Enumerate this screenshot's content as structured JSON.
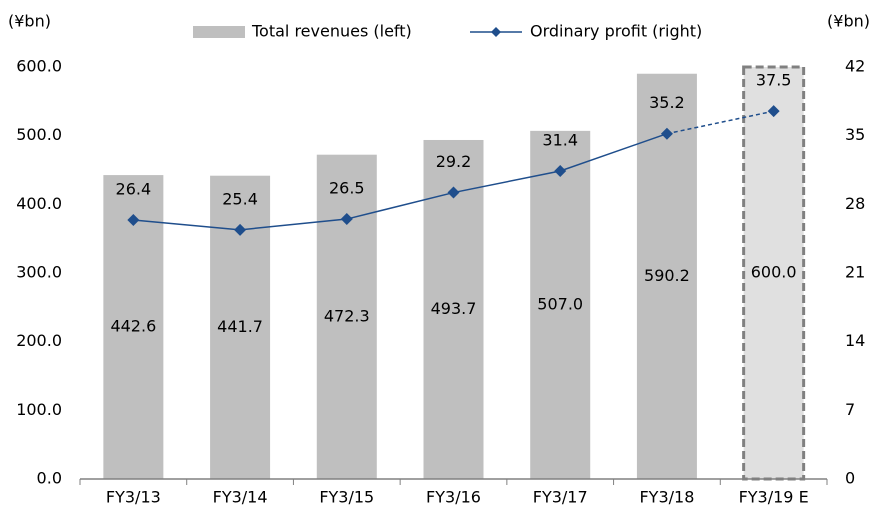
{
  "chart_data": {
    "type": "bar_line",
    "y_unit": "(¥bn)",
    "y2_unit": "(¥bn)",
    "categories": [
      "FY3/13",
      "FY3/14",
      "FY3/15",
      "FY3/16",
      "FY3/17",
      "FY3/18",
      "FY3/19 E"
    ],
    "series": [
      {
        "name": "Total revenues (left)",
        "type": "bar",
        "color": "#bfbfbf",
        "forecast_color": "#e0e0e0",
        "forecast_index": 6,
        "values": [
          442.6,
          441.7,
          472.3,
          493.7,
          507.0,
          590.2,
          600.0
        ],
        "value_labels": [
          "442.6",
          "441.7",
          "472.3",
          "493.7",
          "507.0",
          "590.2",
          "600.0"
        ]
      },
      {
        "name": "Ordinary profit (right)",
        "type": "line",
        "axis": "y2",
        "color": "#1f4e8c",
        "forecast_index": 6,
        "values": [
          26.4,
          25.4,
          26.5,
          29.2,
          31.4,
          35.2,
          37.5
        ]
      }
    ],
    "ylim": [
      0,
      600
    ],
    "yticks": [
      {
        "value": 0,
        "label": "0.0"
      },
      {
        "value": 100,
        "label": "100.0"
      },
      {
        "value": 200,
        "label": "200.0"
      },
      {
        "value": 300,
        "label": "300.0"
      },
      {
        "value": 400,
        "label": "400.0"
      },
      {
        "value": 500,
        "label": "500.0"
      },
      {
        "value": 600,
        "label": "600.0"
      }
    ],
    "y2lim": [
      0,
      42
    ],
    "y2ticks": [
      0,
      7,
      14,
      21,
      28,
      35,
      42
    ],
    "grid": false
  }
}
